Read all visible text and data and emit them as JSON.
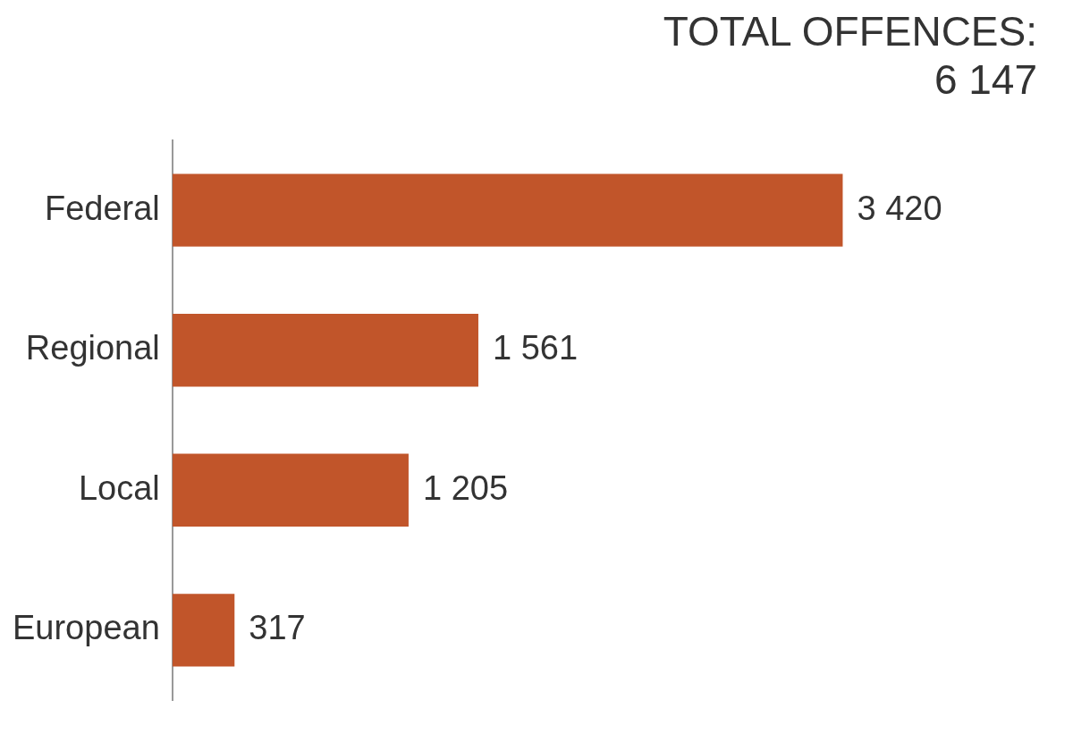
{
  "chart_data": {
    "type": "bar",
    "orientation": "horizontal",
    "title": "TOTAL OFFENCES: 6 147",
    "categories": [
      "Federal",
      "Regional",
      "Local",
      "European"
    ],
    "values": [
      3420,
      1561,
      1205,
      317
    ],
    "value_labels": [
      "3 420",
      "1 561",
      "1 205",
      "317"
    ],
    "color": "#c1552a",
    "grid": false,
    "legend": false,
    "tick_labels": "y"
  }
}
